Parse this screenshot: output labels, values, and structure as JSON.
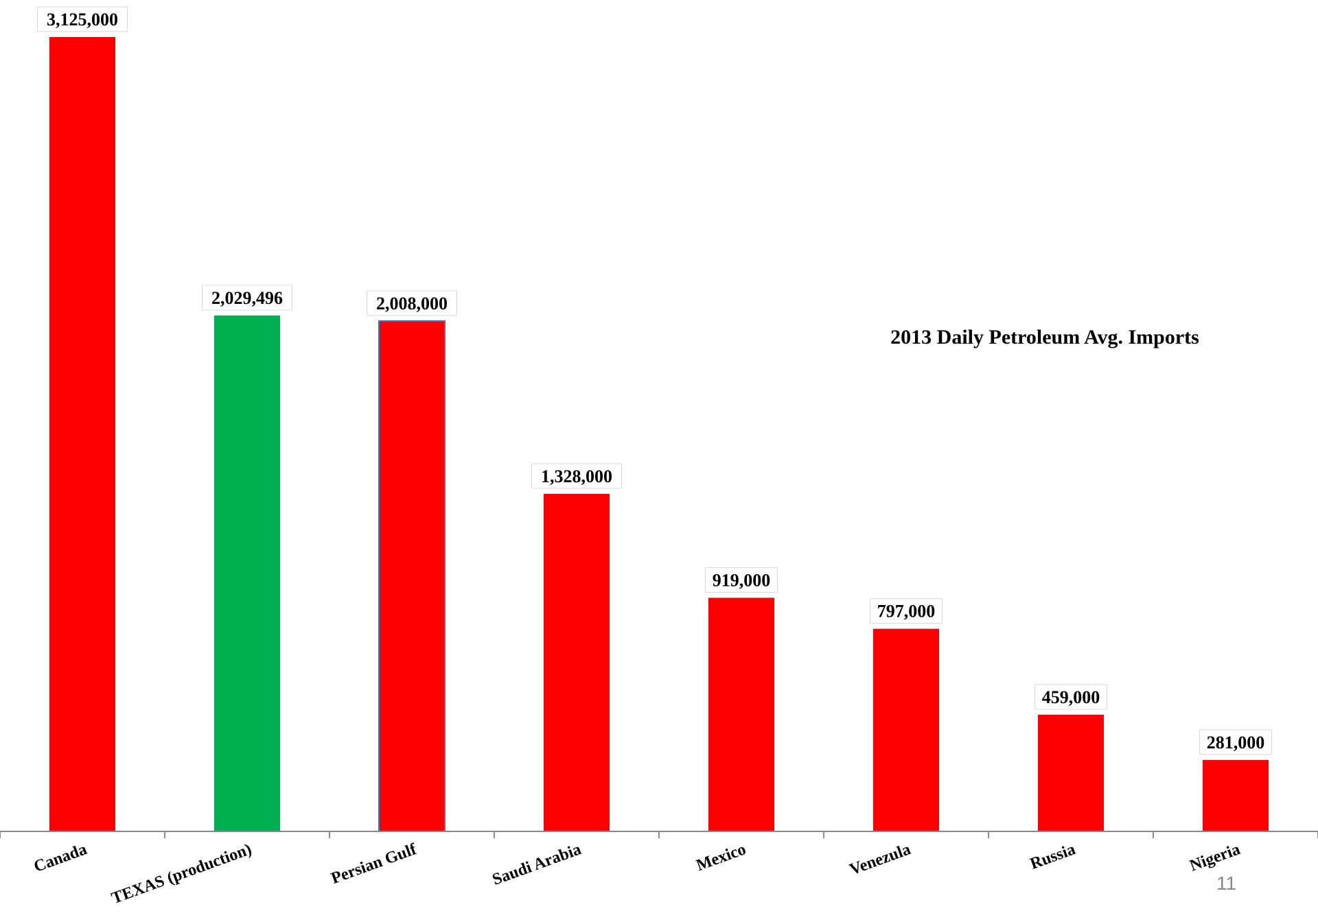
{
  "page_number": "11",
  "chart_data": {
    "type": "bar",
    "title": "2013 Daily Petroleum Avg. Imports",
    "categories": [
      "Canada",
      "TEXAS (production)",
      "Persian Gulf",
      "Saudi Arabia",
      "Mexico",
      "Venezula",
      "Russia",
      "Nigeria"
    ],
    "values": [
      3125000,
      2029496,
      2008000,
      1328000,
      919000,
      797000,
      459000,
      281000
    ],
    "value_labels": [
      "3,125,000",
      "2,029,496",
      "2,008,000",
      "1,328,000",
      "919,000",
      "797,000",
      "459,000",
      "281,000"
    ],
    "bar_colors": [
      "#ff0000",
      "#00b050",
      "#ff0000",
      "#ff0000",
      "#ff0000",
      "#ff0000",
      "#ff0000",
      "#ff0000"
    ],
    "highlight_outline_color": "#4472c4",
    "xlabel": "",
    "ylabel": "",
    "ylim": [
      0,
      3125000
    ],
    "grid": false,
    "legend": "none"
  }
}
